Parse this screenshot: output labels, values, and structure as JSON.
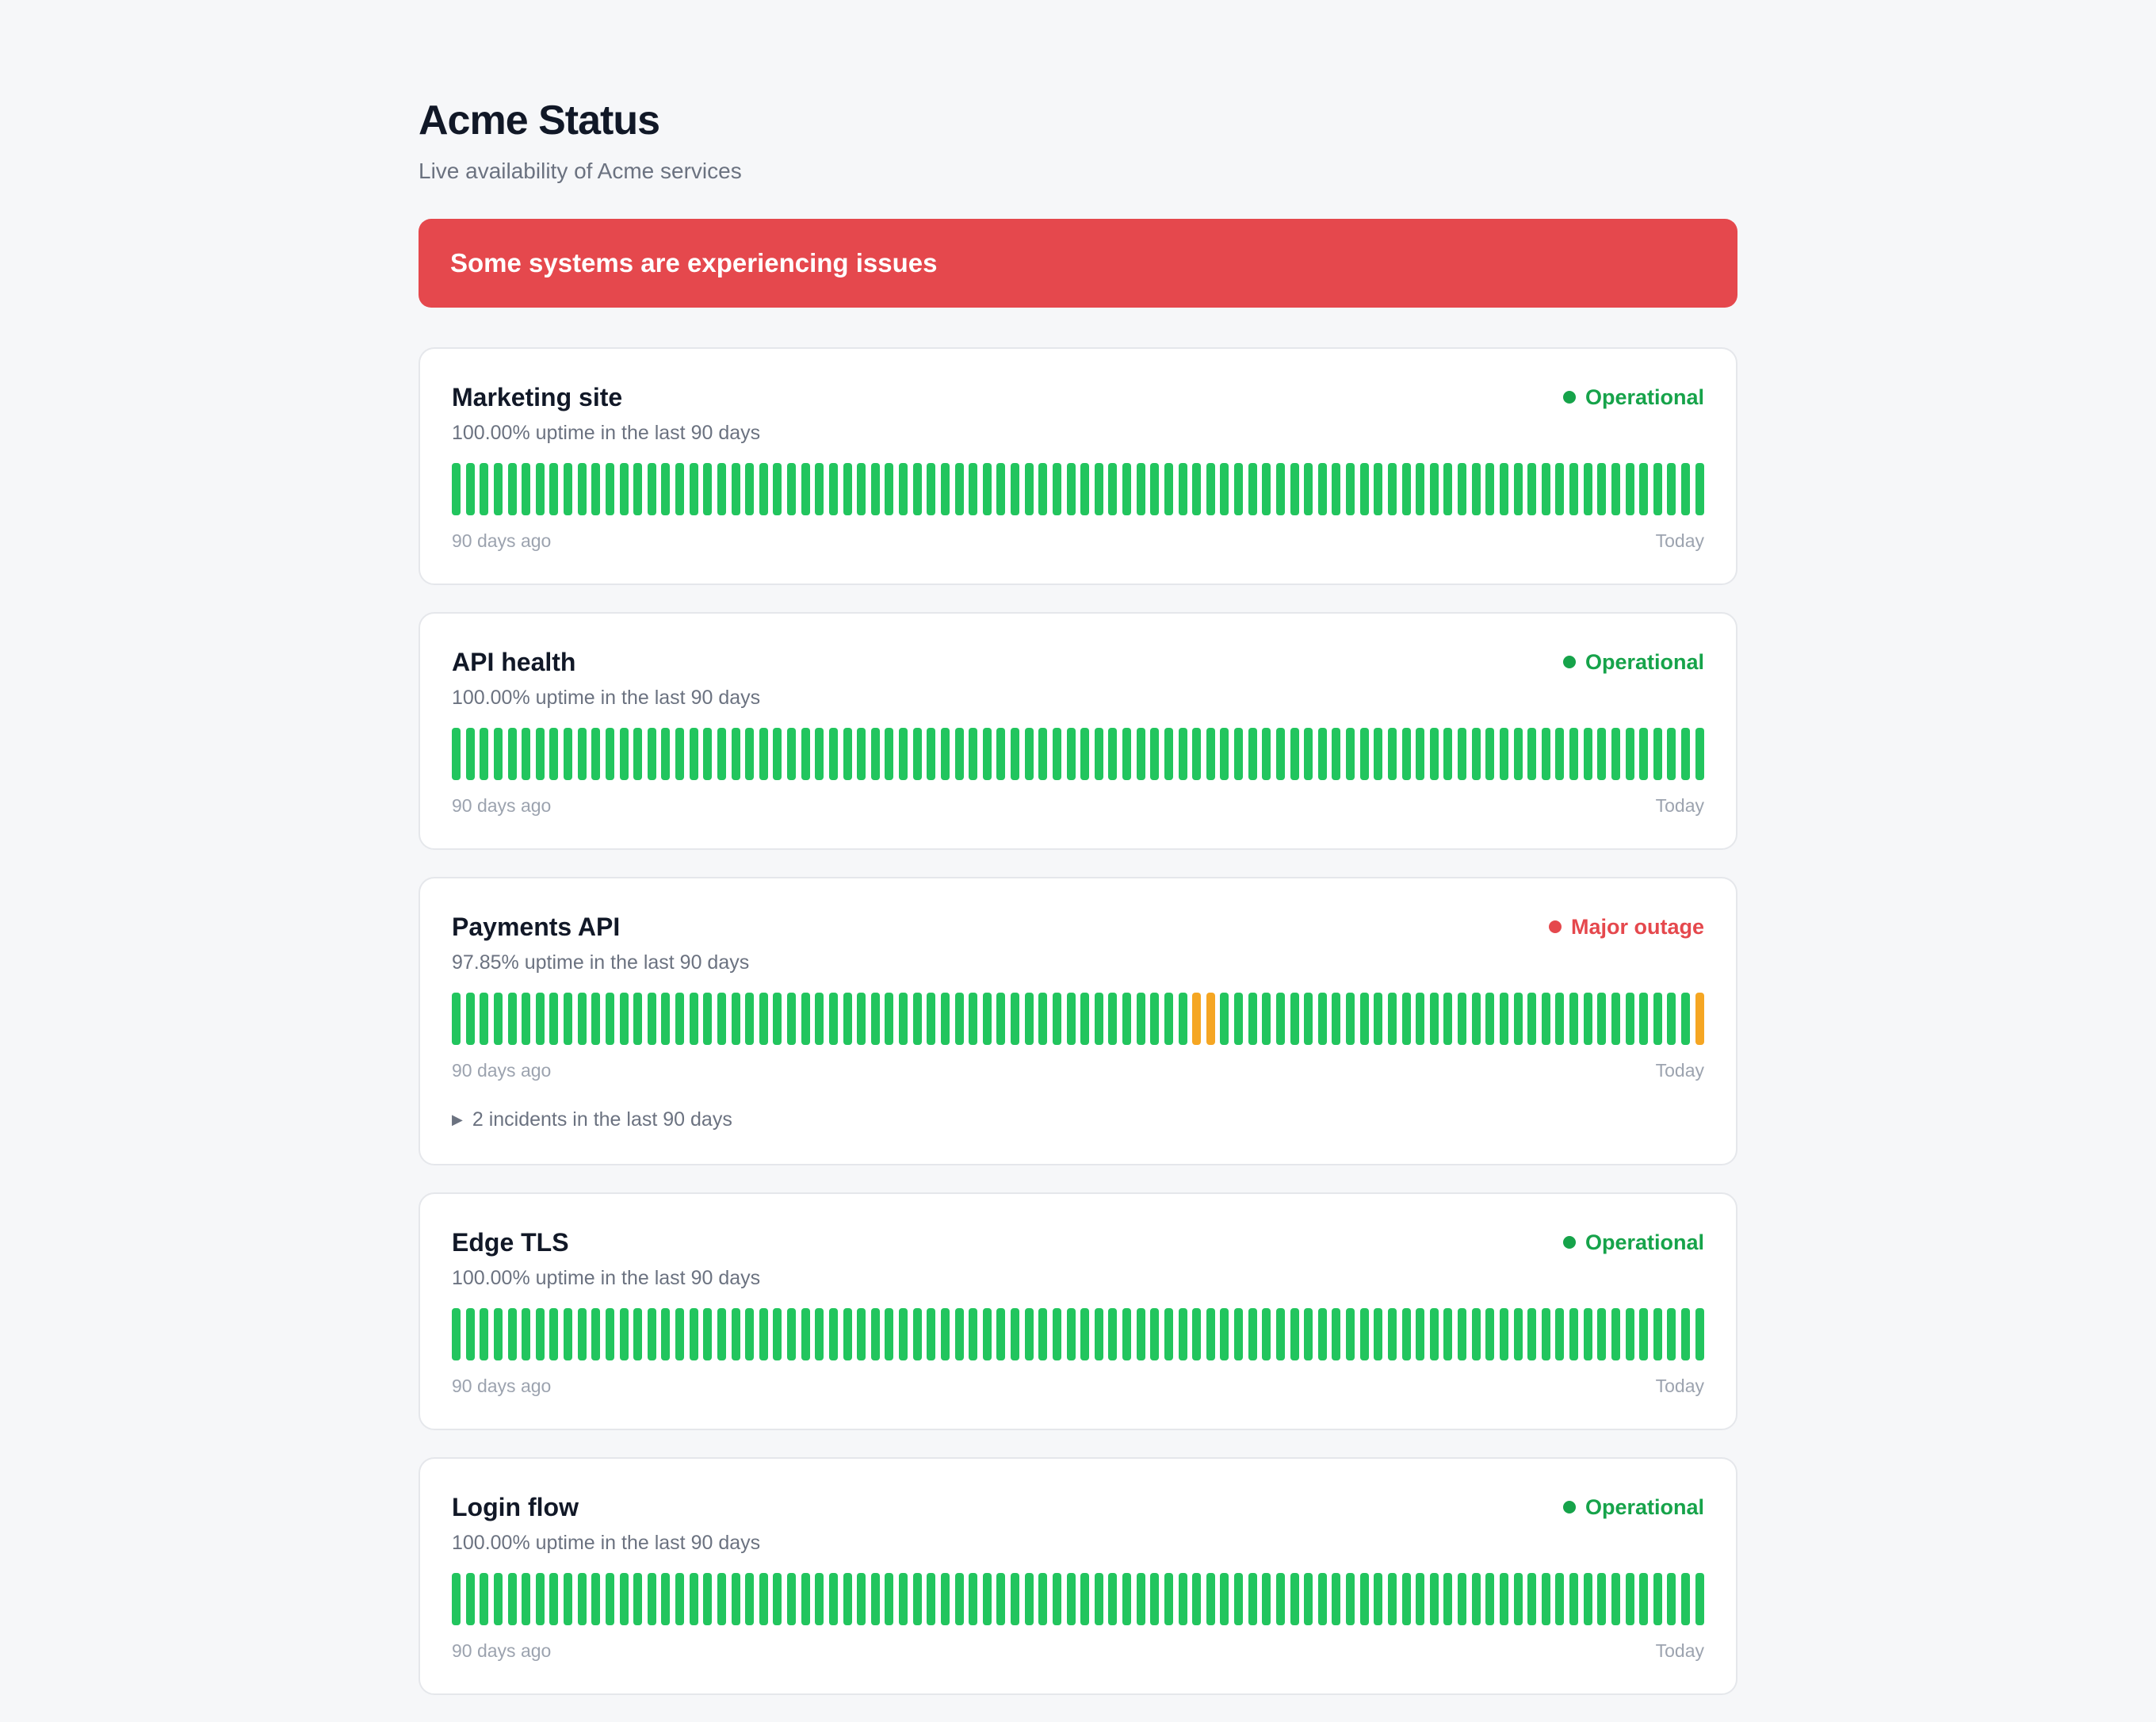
{
  "page": {
    "title": "Acme Status",
    "subtitle": "Live availability of Acme services"
  },
  "banner": {
    "message": "Some systems are experiencing issues",
    "color": "#e5484d"
  },
  "colors": {
    "operational": "#16a34a",
    "major_outage": "#e5484d",
    "bar_ok": "#22c55e",
    "bar_degraded": "#f5a623"
  },
  "services": [
    {
      "name": "Marketing site",
      "status": "Operational",
      "status_color": "#16a34a",
      "uptime": "100.00% uptime in the last 90 days",
      "start_label": "90 days ago",
      "end_label": "Today",
      "incidents": "",
      "degraded_days": []
    },
    {
      "name": "API health",
      "status": "Operational",
      "status_color": "#16a34a",
      "uptime": "100.00% uptime in the last 90 days",
      "start_label": "90 days ago",
      "end_label": "Today",
      "incidents": "",
      "degraded_days": []
    },
    {
      "name": "Payments API",
      "status": "Major outage",
      "status_color": "#e5484d",
      "uptime": "97.85% uptime in the last 90 days",
      "start_label": "90 days ago",
      "end_label": "Today",
      "incidents": "2 incidents in the last 90 days",
      "degraded_days": [
        53,
        54,
        89
      ]
    },
    {
      "name": "Edge TLS",
      "status": "Operational",
      "status_color": "#16a34a",
      "uptime": "100.00% uptime in the last 90 days",
      "start_label": "90 days ago",
      "end_label": "Today",
      "incidents": "",
      "degraded_days": []
    },
    {
      "name": "Login flow",
      "status": "Operational",
      "status_color": "#16a34a",
      "uptime": "100.00% uptime in the last 90 days",
      "start_label": "90 days ago",
      "end_label": "Today",
      "incidents": "",
      "degraded_days": []
    }
  ]
}
